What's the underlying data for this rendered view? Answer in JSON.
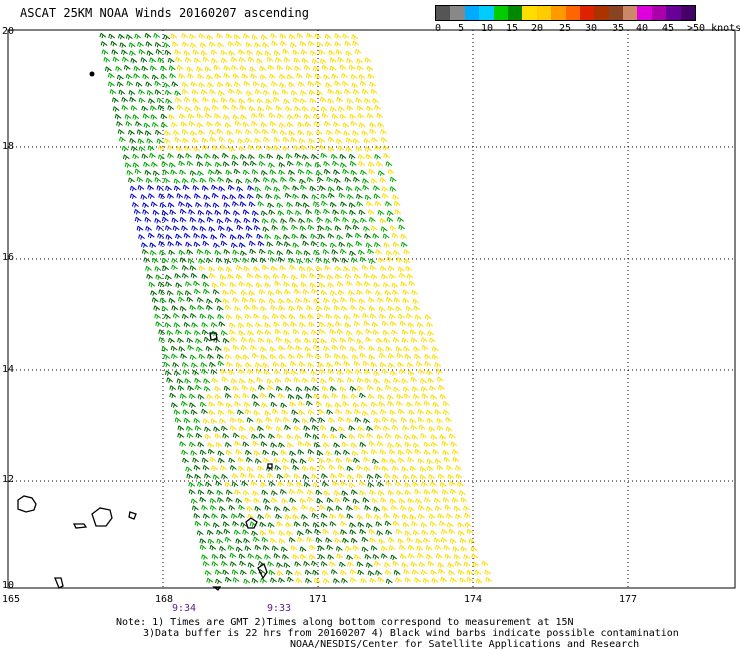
{
  "title": "ASCAT 25KM NOAA Winds 20160207 ascending",
  "legend": {
    "colors": [
      "#555555",
      "#888888",
      "#00aaff",
      "#00ccff",
      "#00cc00",
      "#008800",
      "#ffdd00",
      "#ffcc00",
      "#ff9900",
      "#ff6600",
      "#dd2200",
      "#aa3300",
      "#884422",
      "#cc8866",
      "#dd00dd",
      "#aa00aa",
      "#660099",
      "#440066"
    ],
    "labels": [
      "0",
      "5",
      "10",
      "15",
      "20",
      "25",
      "30",
      "35",
      "40",
      "45",
      ">50 knots"
    ]
  },
  "axes": {
    "lat_labels": [
      "20",
      "18",
      "16",
      "14",
      "12",
      "10"
    ],
    "lon_labels": [
      "165",
      "168",
      "171",
      "174",
      "177"
    ]
  },
  "pass_times": [
    "9:34",
    "9:33"
  ],
  "notes": {
    "line1": "Note: 1) Times are GMT 2)Times along bottom correspond to measurement at 15N",
    "line2": "3)Data buffer is 22 hrs from 20160207 4) Black wind barbs indicate possible contamination",
    "line3": "NOAA/NESDIS/Center for Satellite Applications and Research"
  },
  "swath_colors": {
    "yellow": "#ffdd00",
    "green": "#00aa00",
    "dark_green": "#006600",
    "blue": "#0000cc"
  }
}
